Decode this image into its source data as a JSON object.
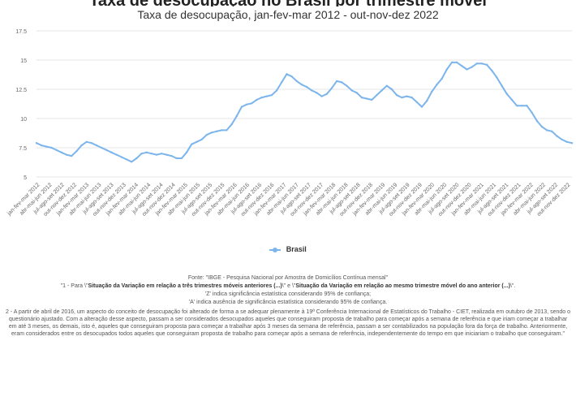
{
  "chart_data": {
    "type": "line",
    "title": "Taxa de desocupação no Brasil por trimestre móvel",
    "subtitle": "Taxa de desocupação, jan-fev-mar 2012 - out-nov-dez 2022",
    "xlabel": "",
    "ylabel": "",
    "ylim": [
      5,
      17.5
    ],
    "yticks": [
      "5",
      "7.5",
      "10",
      "12.5",
      "15",
      "17.5"
    ],
    "grid": true,
    "legend_position": "bottom",
    "series": [
      {
        "name": "Brasil",
        "color": "#7cb5ec",
        "values": [
          7.9,
          7.7,
          7.6,
          7.5,
          7.3,
          7.1,
          6.9,
          6.8,
          7.2,
          7.7,
          8.0,
          7.9,
          7.7,
          7.5,
          7.3,
          7.1,
          6.9,
          6.7,
          6.5,
          6.3,
          6.6,
          7.0,
          7.1,
          7.0,
          6.9,
          7.0,
          6.9,
          6.8,
          6.6,
          6.6,
          7.1,
          7.8,
          8.0,
          8.2,
          8.6,
          8.8,
          8.9,
          9.0,
          9.0,
          9.5,
          10.2,
          11.0,
          11.2,
          11.3,
          11.6,
          11.8,
          11.9,
          12.0,
          12.4,
          13.1,
          13.8,
          13.6,
          13.2,
          12.9,
          12.7,
          12.4,
          12.2,
          11.9,
          12.1,
          12.6,
          13.2,
          13.1,
          12.8,
          12.4,
          12.2,
          11.8,
          11.7,
          11.6,
          12.0,
          12.4,
          12.8,
          12.5,
          12.0,
          11.8,
          11.9,
          11.8,
          11.4,
          11.0,
          11.5,
          12.3,
          12.9,
          13.4,
          14.2,
          14.8,
          14.8,
          14.5,
          14.2,
          14.4,
          14.7,
          14.7,
          14.6,
          14.1,
          13.5,
          12.8,
          12.1,
          11.6,
          11.1,
          11.1,
          11.1,
          10.5,
          9.8,
          9.3,
          9.0,
          8.9,
          8.5,
          8.2,
          8.0,
          7.9
        ]
      }
    ],
    "tick_labels": [
      "jan-fev-mar 2012",
      "abr-mai-jun 2012",
      "jul-ago-set 2012",
      "out-nov-dez 2012",
      "jan-fev-mar 2013",
      "abr-mai-jun 2013",
      "jul-ago-set 2013",
      "out-nov-dez 2013",
      "jan-fev-mar 2014",
      "abr-mai-jun 2014",
      "jul-ago-set 2014",
      "out-nov-dez 2014",
      "jan-fev-mar 2015",
      "abr-mai-jun 2015",
      "jul-ago-set 2015",
      "out-nov-dez 2015",
      "jan-fev-mar 2016",
      "abr-mai-jun 2016",
      "jul-ago-set 2016",
      "out-nov-dez 2016",
      "jan-fev-mar 2017",
      "abr-mai-jun 2017",
      "jul-ago-set 2017",
      "out-nov-dez 2017",
      "jan-fev-mar 2018",
      "abr-mai-jun 2018",
      "jul-ago-set 2018",
      "out-nov-dez 2018",
      "jan-fev-mar 2019",
      "abr-mai-jun 2019",
      "jul-ago-set 2019",
      "out-nov-dez 2019",
      "jan-fev-mar 2020",
      "abr-mai-jun 2020",
      "jul-ago-set 2020",
      "out-nov-dez 2020",
      "jan-fev-mar 2021",
      "abr-mai-jun 2021",
      "jul-ago-set 2021",
      "out-nov-dez 2021",
      "jan-fev-mar 2022",
      "abr-mai-jun 2022",
      "jul-ago-set 2022",
      "out-nov-dez 2022"
    ]
  },
  "legend": {
    "label": "Brasil"
  },
  "notes": {
    "source": "Fonte: \"IBGE - Pesquisa Nacional por Amostra de Domicílios Contínua mensal\"",
    "note1_prefix": "\"1 - Para \\\"",
    "note1_bold1": "Situação da Variação em relação a três trimestres móveis anteriores (...)",
    "note1_mid": "\\\" e \\\"",
    "note1_bold2": "Situação da Variação em relação ao mesmo trimestre móvel do ano anterior (...)",
    "note1_suffix": "\\\".",
    "note1_line2": "'Z' indica significância estatística considerando 95% de confiança;",
    "note1_line3": "'A' indica ausência de significância estatística considerando 95% de confiança.",
    "note2": "2 - A partir de abril de 2016, um aspecto do conceito de desocupação foi alterado de forma a se adequar plenamente à 19ª Conferência Internacional de Estatísticos do Trabalho - CIET, realizada em outubro de 2013, sendo o questionário ajustado. Com a alteração desse aspecto, passam a ser considerados desocupados aqueles que conseguiram proposta de trabalho para começar após a semana de referência e que iriam começar a trabalhar em até 3 meses, os demais, isto é, aqueles que conseguiram proposta para começar a trabalhar após 3 meses da semana de referência, passam a ser contabilizados na população fora da força de trabalho. Anteriormente, eram considerados entre os desocupados todos aqueles que conseguiram proposta de trabalho para começar após a semana de referência, independentemente do tempo em que iniciariam o trabalho que conseguiram.\""
  }
}
